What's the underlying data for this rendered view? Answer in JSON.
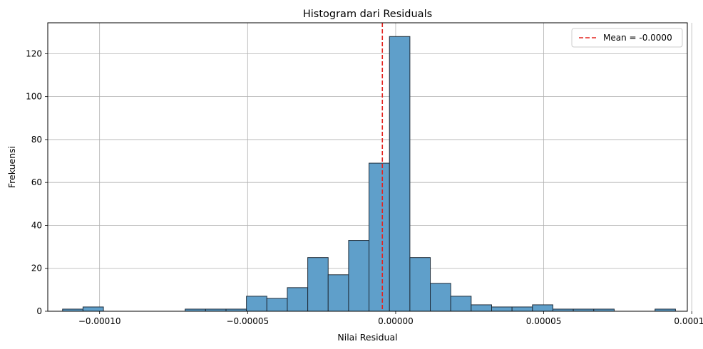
{
  "chart_data": {
    "type": "bar",
    "title": "Histogram dari Residuals",
    "xlabel": "Nilai Residual",
    "ylabel": "Frekuensi",
    "bin_start": -0.0001125,
    "bin_width": 6.9e-06,
    "counts": [
      1,
      2,
      0,
      0,
      0,
      0,
      1,
      1,
      1,
      7,
      6,
      11,
      25,
      17,
      33,
      69,
      128,
      25,
      13,
      7,
      3,
      2,
      2,
      3,
      1,
      1,
      1,
      0,
      0,
      1
    ],
    "xlim": [
      -0.0001175,
      9.85e-05
    ],
    "ylim": [
      0,
      134.4
    ],
    "xticks": [
      -0.0001,
      -5e-05,
      0,
      5e-05,
      0.0001
    ],
    "xtick_labels": [
      "−0.00010",
      "−0.00005",
      "0.00000",
      "0.00005",
      "0.00010"
    ],
    "yticks": [
      0,
      20,
      40,
      60,
      80,
      100,
      120
    ],
    "ytick_labels": [
      "0",
      "20",
      "40",
      "60",
      "80",
      "100",
      "120"
    ],
    "grid": true,
    "bar_color": "#5f9fca",
    "edge_color": "#1f2d3a",
    "mean_line": {
      "value": -4.5e-06,
      "label": "Mean = -0.0000",
      "color": "#e3231f",
      "style": "dashed"
    },
    "legend_position": "top-right"
  }
}
